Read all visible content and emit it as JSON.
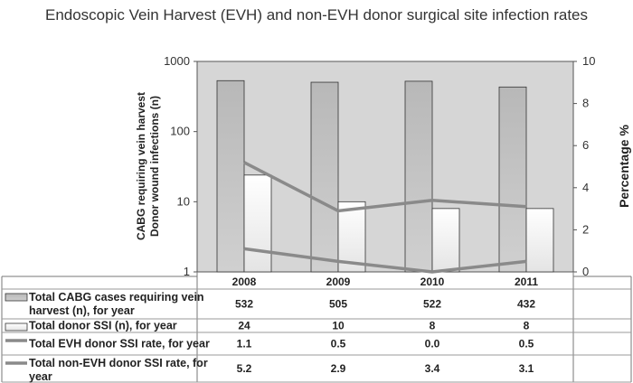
{
  "chart_data": {
    "type": "bar",
    "title": "Endoscopic Vein Harvest (EVH) and non-EVH donor surgical site infection rates",
    "categories": [
      "2008",
      "2009",
      "2010",
      "2011"
    ],
    "y_left": {
      "label_lines": [
        "CABG requiring vein harvest",
        "Donor wound infections (n)"
      ],
      "scale": "log",
      "range": [
        1,
        1000
      ],
      "ticks": [
        "1",
        "10",
        "100",
        "1000"
      ]
    },
    "y_right": {
      "label": "Percentage %",
      "range": [
        0,
        10
      ],
      "ticks": [
        "0",
        "2",
        "4",
        "6",
        "8",
        "10"
      ]
    },
    "grid": false,
    "legend": "data-table-bottom",
    "colors": {
      "plot_bg": "#d6d6d6",
      "bar_cabg": "#c2c2c2",
      "bar_ssi": "#ffffff",
      "line": "#8a8a8a"
    },
    "series": [
      {
        "name_lines": [
          "Total CABG cases requiring vein",
          "harvest (n), for year"
        ],
        "kind": "bar",
        "axis": "left",
        "values": [
          532,
          505,
          522,
          432
        ],
        "labels": [
          "532",
          "505",
          "522",
          "432"
        ]
      },
      {
        "name_lines": [
          "Total  donor SSI (n), for year"
        ],
        "kind": "bar",
        "axis": "left",
        "values": [
          24,
          10,
          8,
          8
        ],
        "labels": [
          "24",
          "10",
          "8",
          "8"
        ]
      },
      {
        "name_lines": [
          "Total EVH  donor SSI rate, for year"
        ],
        "kind": "line",
        "axis": "right",
        "values": [
          1.1,
          0.5,
          0.0,
          0.5
        ],
        "labels": [
          "1.1",
          "0.5",
          "0.0",
          "0.5"
        ]
      },
      {
        "name_lines": [
          "Total  non-EVH  donor SSI rate, for",
          "year"
        ],
        "kind": "line",
        "axis": "right",
        "values": [
          5.2,
          2.9,
          3.4,
          3.1
        ],
        "labels": [
          "5.2",
          "2.9",
          "3.4",
          "3.1"
        ]
      }
    ]
  }
}
